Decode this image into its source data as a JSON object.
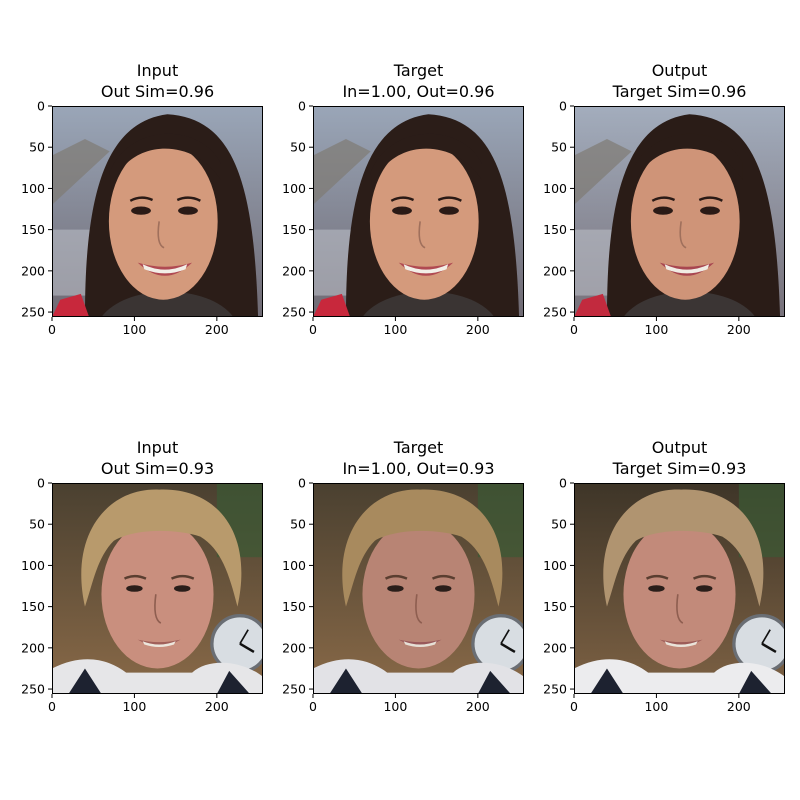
{
  "chart_data": [
    {
      "type": "image",
      "row": 0,
      "col": 0,
      "title_line1": "Input",
      "title_line2": "Out Sim=0.96",
      "image_semantic": "portrait-smiling-woman-dark-hair-mountain-background",
      "xlim": [
        0,
        256
      ],
      "ylim": [
        256,
        0
      ],
      "xticks": [
        0,
        100,
        200
      ],
      "yticks": [
        0,
        50,
        100,
        150,
        200,
        250
      ],
      "palette": {
        "bg_top": "#9aa6b8",
        "bg_bottom": "#6f6a73",
        "hair": "#2b1d18",
        "skin": "#d49a7c",
        "lips": "#b04a52",
        "teeth": "#f2efe8",
        "cloth": "#3a3433",
        "accent": "#c8283c"
      }
    },
    {
      "type": "image",
      "row": 0,
      "col": 1,
      "title_line1": "Target",
      "title_line2": "In=1.00, Out=0.96",
      "image_semantic": "portrait-smiling-woman-dark-hair-mountain-background",
      "xlim": [
        0,
        256
      ],
      "ylim": [
        256,
        0
      ],
      "xticks": [
        0,
        100,
        200
      ],
      "yticks": [
        0,
        50,
        100,
        150,
        200,
        250
      ],
      "palette": {
        "bg_top": "#9aa6b8",
        "bg_bottom": "#6f6a73",
        "hair": "#2b1d18",
        "skin": "#d49a7c",
        "lips": "#b04a52",
        "teeth": "#f2efe8",
        "cloth": "#3a3433",
        "accent": "#c8283c"
      }
    },
    {
      "type": "image",
      "row": 0,
      "col": 2,
      "title_line1": "Output",
      "title_line2": "Target Sim=0.96",
      "image_semantic": "portrait-smiling-woman-dark-hair-mountain-background",
      "xlim": [
        0,
        256
      ],
      "ylim": [
        256,
        0
      ],
      "xticks": [
        0,
        100,
        200
      ],
      "yticks": [
        0,
        50,
        100,
        150,
        200,
        250
      ],
      "palette": {
        "bg_top": "#a3adbd",
        "bg_bottom": "#77717a",
        "hair": "#2a1c17",
        "skin": "#cf9478",
        "lips": "#a84650",
        "teeth": "#f0ece4",
        "cloth": "#3b3534",
        "accent": "#c22a3e"
      }
    },
    {
      "type": "image",
      "row": 1,
      "col": 0,
      "title_line1": "Input",
      "title_line2": "Out Sim=0.93",
      "image_semantic": "portrait-man-curly-light-brown-hair-with-wall-clock",
      "xlim": [
        0,
        256
      ],
      "ylim": [
        256,
        0
      ],
      "xticks": [
        0,
        100,
        200
      ],
      "yticks": [
        0,
        50,
        100,
        150,
        200,
        250
      ],
      "palette": {
        "bg_top": "#4a4030",
        "bg_bottom": "#8a6a48",
        "hair": "#b89a6c",
        "skin": "#c98f7e",
        "lips": "#a0605a",
        "teeth": "#ece6dc",
        "cloth": "#e6e6e8",
        "accent": "#1d2230"
      }
    },
    {
      "type": "image",
      "row": 1,
      "col": 1,
      "title_line1": "Target",
      "title_line2": "In=1.00, Out=0.93",
      "image_semantic": "portrait-man-curly-light-brown-hair-with-wall-clock",
      "xlim": [
        0,
        256
      ],
      "ylim": [
        256,
        0
      ],
      "xticks": [
        0,
        100,
        200
      ],
      "yticks": [
        0,
        50,
        100,
        150,
        200,
        250
      ],
      "palette": {
        "bg_top": "#4a4030",
        "bg_bottom": "#8a6a48",
        "hair": "#a88a5e",
        "skin": "#b88474",
        "lips": "#98585a",
        "teeth": "#e6e0d6",
        "cloth": "#e2e2e6",
        "accent": "#1d2230"
      }
    },
    {
      "type": "image",
      "row": 1,
      "col": 2,
      "title_line1": "Output",
      "title_line2": "Target Sim=0.93",
      "image_semantic": "portrait-man-curly-light-brown-hair-with-wall-clock",
      "xlim": [
        0,
        256
      ],
      "ylim": [
        256,
        0
      ],
      "xticks": [
        0,
        100,
        200
      ],
      "yticks": [
        0,
        50,
        100,
        150,
        200,
        250
      ],
      "palette": {
        "bg_top": "#3e3528",
        "bg_bottom": "#7e6244",
        "hair": "#b09470",
        "skin": "#c28a7a",
        "lips": "#9c5c58",
        "teeth": "#eae4da",
        "cloth": "#ececee",
        "accent": "#1d2230"
      }
    }
  ]
}
